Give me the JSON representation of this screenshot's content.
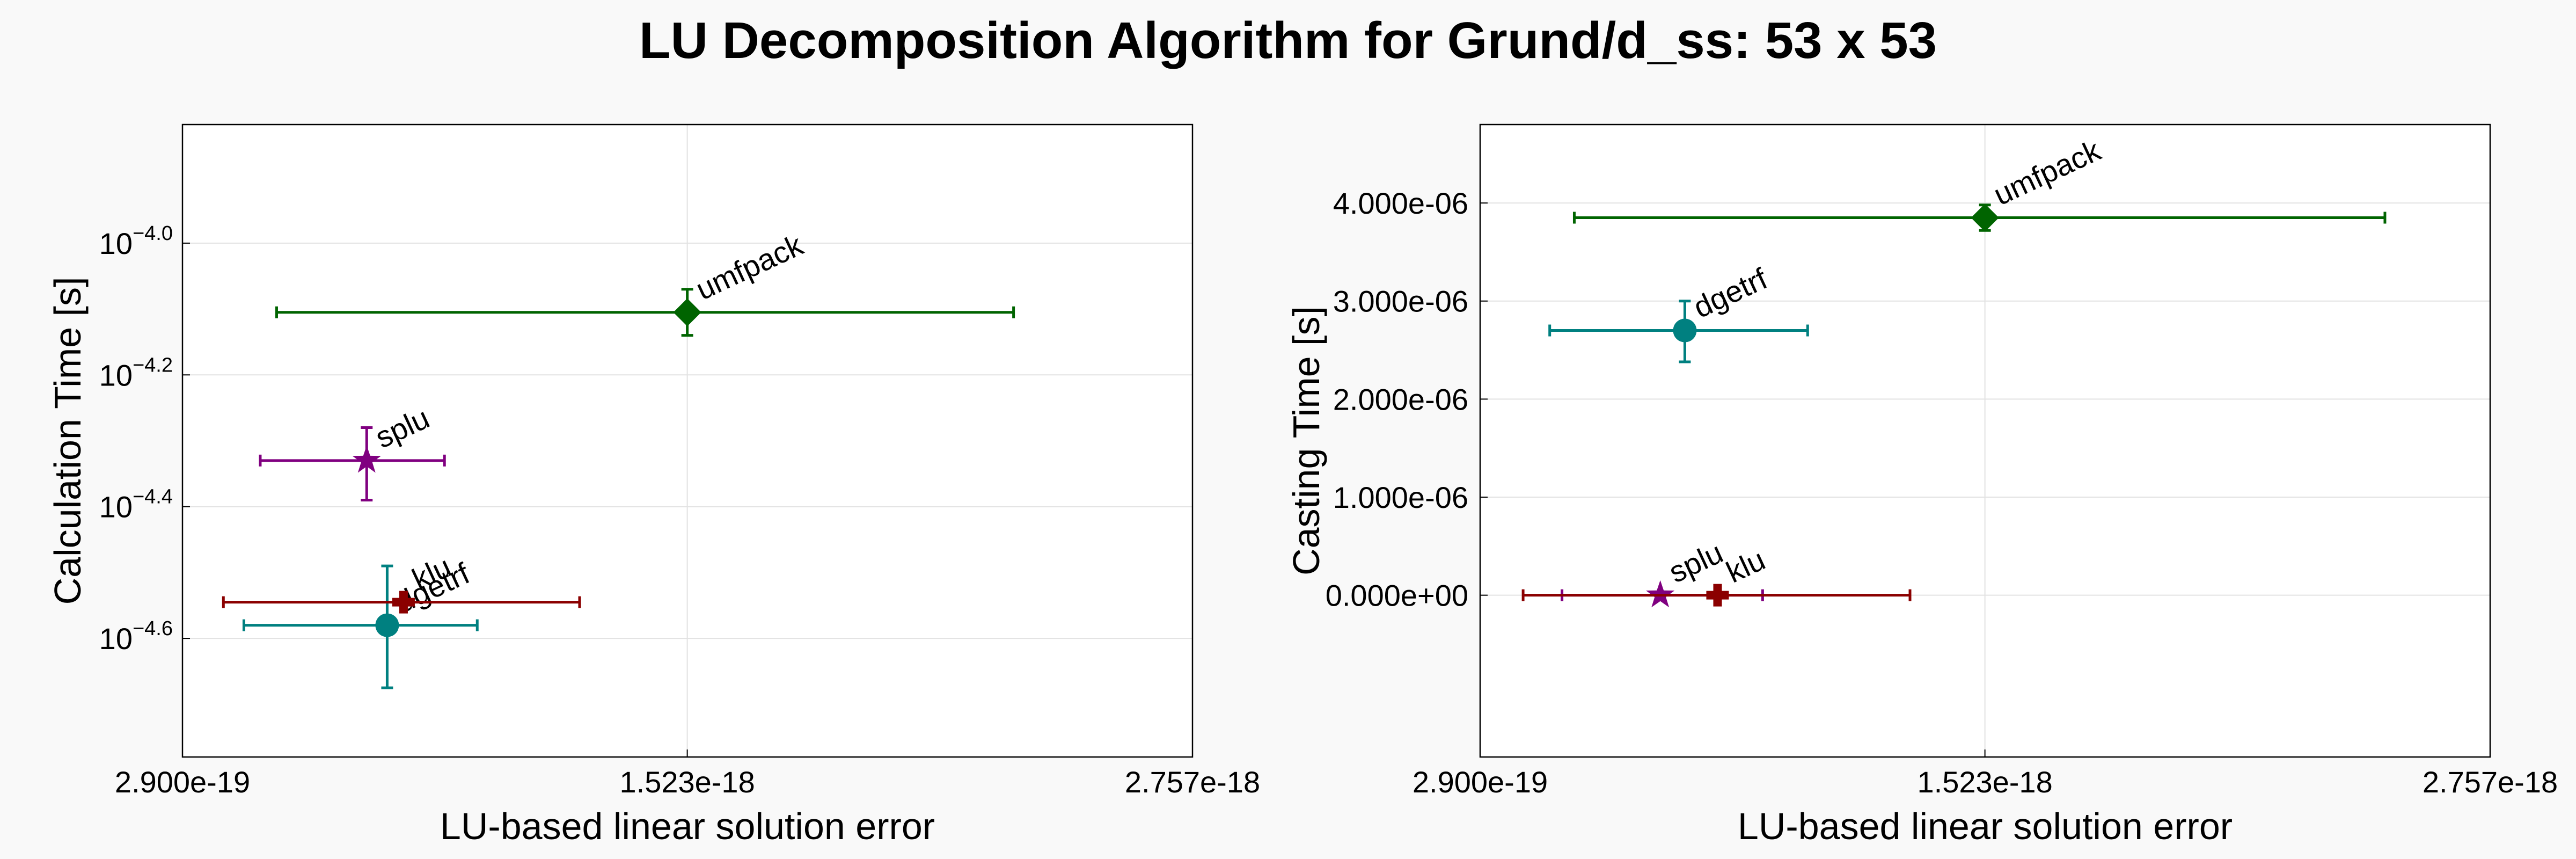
{
  "title": "LU Decomposition Algorithm for Grund/d_ss: 53 x 53",
  "chart_data": [
    {
      "type": "scatter",
      "xlabel": "LU-based linear solution error",
      "ylabel": "Calculation Time [s]",
      "yscale": "log",
      "grid": true,
      "xlim": [
        2.9e-19,
        2.757e-18
      ],
      "ylim_log10": [
        -4.78,
        -3.82
      ],
      "xticks": [
        {
          "value": 2.9e-19,
          "label": "2.900e-19"
        },
        {
          "value": 1.523e-18,
          "label": "1.523e-18"
        },
        {
          "value": 2.757e-18,
          "label": "2.757e-18"
        }
      ],
      "yticks": [
        {
          "log10": -4.0,
          "base": "10",
          "exp": "−4.0"
        },
        {
          "log10": -4.2,
          "base": "10",
          "exp": "−4.2"
        },
        {
          "log10": -4.4,
          "base": "10",
          "exp": "−4.4"
        },
        {
          "log10": -4.6,
          "base": "10",
          "exp": "−4.6"
        }
      ],
      "points": [
        {
          "label": "umfpack",
          "x": 1.523e-18,
          "xerr": [
            5.2e-19,
            2.32e-18
          ],
          "log10y": -4.105,
          "yerr_log10": [
            -4.14,
            -4.07
          ],
          "color": "#006400",
          "marker": "diamond"
        },
        {
          "label": "splu",
          "x": 7.4e-19,
          "xerr": [
            4.8e-19,
            9.3e-19
          ],
          "log10y": -4.33,
          "yerr_log10": [
            -4.39,
            -4.28
          ],
          "color": "#800080",
          "marker": "star"
        },
        {
          "label": "dgetrf",
          "x": 7.9e-19,
          "xerr": [
            4.4e-19,
            1.01e-18
          ],
          "log10y": -4.58,
          "yerr_log10": [
            -4.675,
            -4.49
          ],
          "color": "#008080",
          "marker": "circle"
        },
        {
          "label": "klu",
          "x": 8.3e-19,
          "xerr": [
            3.9e-19,
            1.26e-18
          ],
          "log10y": -4.545,
          "yerr_log10": [
            -4.545,
            -4.545
          ],
          "color": "#8b0000",
          "marker": "plus"
        }
      ]
    },
    {
      "type": "scatter",
      "xlabel": "LU-based linear solution error",
      "ylabel": "Casting Time [s]",
      "yscale": "linear",
      "grid": true,
      "xlim": [
        2.9e-19,
        2.757e-18
      ],
      "ylim": [
        -1.65e-06,
        4.8e-06
      ],
      "xticks": [
        {
          "value": 2.9e-19,
          "label": "2.900e-19"
        },
        {
          "value": 1.523e-18,
          "label": "1.523e-18"
        },
        {
          "value": 2.757e-18,
          "label": "2.757e-18"
        }
      ],
      "yticks": [
        {
          "value": 4e-06,
          "label": "4.000e-06"
        },
        {
          "value": 3e-06,
          "label": "3.000e-06"
        },
        {
          "value": 2e-06,
          "label": "2.000e-06"
        },
        {
          "value": 1e-06,
          "label": "1.000e-06"
        },
        {
          "value": 0.0,
          "label": "0.000e+00"
        }
      ],
      "points": [
        {
          "label": "umfpack",
          "x": 1.523e-18,
          "xerr": [
            5.2e-19,
            2.5e-18
          ],
          "y": 3.85e-06,
          "yerr": [
            3.72e-06,
            3.98e-06
          ],
          "color": "#006400",
          "marker": "diamond"
        },
        {
          "label": "dgetrf",
          "x": 7.9e-19,
          "xerr": [
            4.6e-19,
            1.09e-18
          ],
          "y": 2.7e-06,
          "yerr": [
            2.38e-06,
            3e-06
          ],
          "color": "#008080",
          "marker": "circle"
        },
        {
          "label": "splu",
          "x": 7.3e-19,
          "xerr": [
            4.9e-19,
            9.8e-19
          ],
          "y": 0.0,
          "yerr": [
            0.0,
            0.0
          ],
          "color": "#800080",
          "marker": "star"
        },
        {
          "label": "klu",
          "x": 8.7e-19,
          "xerr": [
            3.95e-19,
            1.34e-18
          ],
          "y": 0.0,
          "yerr": [
            0.0,
            0.0
          ],
          "color": "#8b0000",
          "marker": "plus"
        }
      ]
    }
  ]
}
